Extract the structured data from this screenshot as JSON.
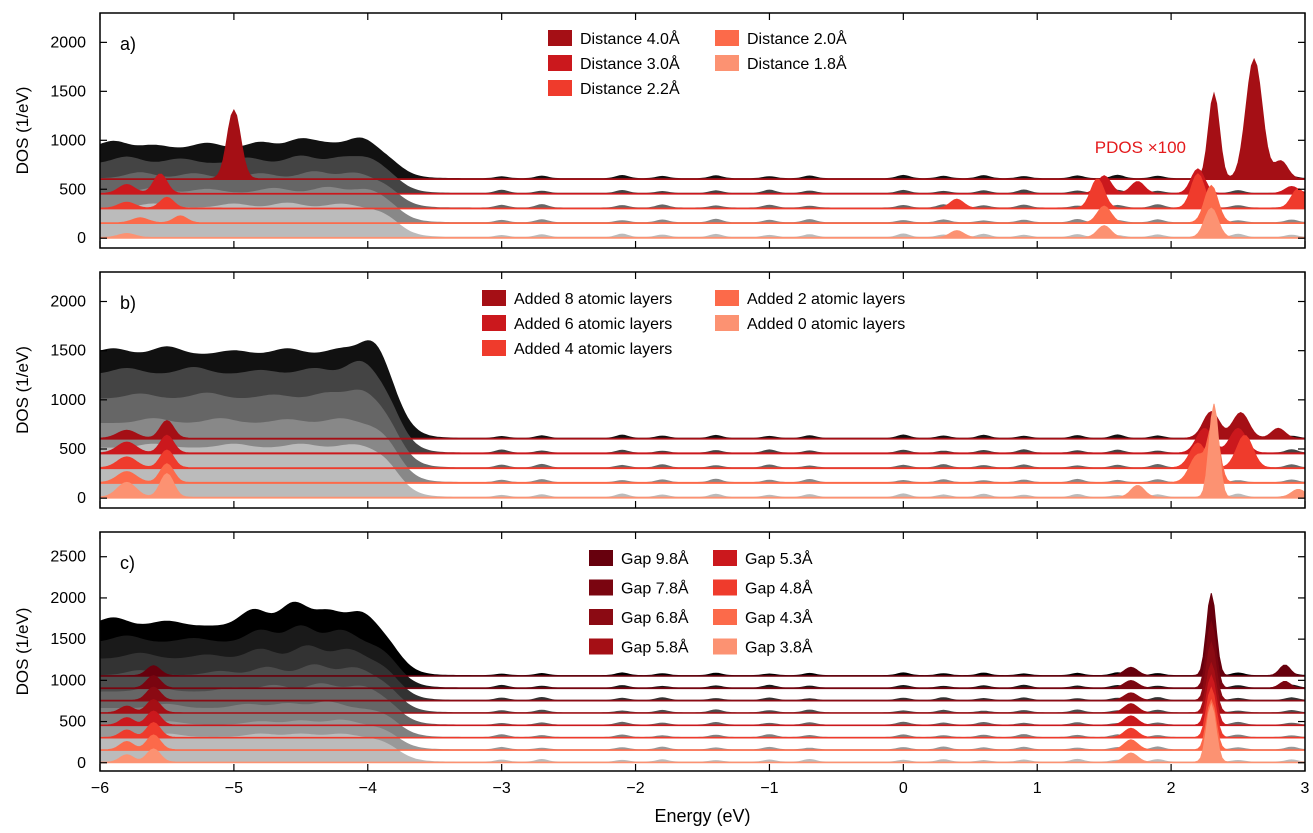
{
  "chart_data": [
    {
      "type": "area",
      "panel_label": "a)",
      "xlabel": "",
      "ylabel": "DOS (1/eV)",
      "xlim": [
        -6,
        3
      ],
      "ylim": [
        -100,
        2300
      ],
      "yticks": [
        0,
        500,
        1000,
        1500,
        2000
      ],
      "annotation": "PDOS ×100",
      "legend": [
        "Distance 4.0Å",
        "Distance 3.0Å",
        "Distance 2.2Å",
        "Distance 2.0Å",
        "Distance 1.8Å"
      ],
      "series": [
        {
          "name": "Distance 4.0Å",
          "offset": 600,
          "color": "#a50f15",
          "gray": "#111111",
          "vb_level": 300,
          "vb_bumps": [
            [
              -5.9,
              80
            ],
            [
              -5.6,
              40
            ],
            [
              -5.2,
              60
            ],
            [
              -4.8,
              70
            ],
            [
              -4.5,
              100
            ],
            [
              -4.3,
              50
            ],
            [
              -4.05,
              120
            ]
          ],
          "pdos_base": 8,
          "pdos_peaks": [
            [
              -5.0,
              700,
              0.05
            ],
            [
              2.32,
              870,
              0.04
            ],
            [
              2.62,
              1220,
              0.06
            ],
            [
              2.82,
              180,
              0.05
            ]
          ]
        },
        {
          "name": "Distance 3.0Å",
          "offset": 450,
          "color": "#cb181d",
          "gray": "#444444",
          "vb_level": 300,
          "vb_bumps": [
            [
              -5.8,
              70
            ],
            [
              -5.4,
              50
            ],
            [
              -4.9,
              60
            ],
            [
              -4.5,
              80
            ],
            [
              -4.2,
              60
            ],
            [
              -4.0,
              70
            ]
          ],
          "pdos_base": 8,
          "pdos_peaks": [
            [
              -5.8,
              90,
              0.06
            ],
            [
              -5.55,
              200,
              0.05
            ],
            [
              1.5,
              180,
              0.05
            ],
            [
              1.75,
              120,
              0.05
            ],
            [
              2.2,
              250,
              0.05
            ],
            [
              2.9,
              70,
              0.05
            ]
          ]
        },
        {
          "name": "Distance 2.2Å",
          "offset": 300,
          "color": "#ef3b2c",
          "gray": "#666666",
          "vb_level": 300,
          "vb_bumps": [
            [
              -5.7,
              60
            ],
            [
              -5.3,
              50
            ],
            [
              -4.8,
              50
            ],
            [
              -4.4,
              70
            ],
            [
              -4.1,
              60
            ]
          ],
          "pdos_base": 8,
          "pdos_peaks": [
            [
              -5.8,
              60,
              0.06
            ],
            [
              -5.5,
              110,
              0.05
            ],
            [
              0.4,
              90,
              0.05
            ],
            [
              1.45,
              300,
              0.05
            ],
            [
              2.2,
              350,
              0.05
            ],
            [
              2.95,
              200,
              0.05
            ]
          ]
        },
        {
          "name": "Distance 2.0Å",
          "offset": 150,
          "color": "#fc6a4a",
          "gray": "#888888",
          "vb_level": 300,
          "vb_bumps": [
            [
              -5.6,
              50
            ],
            [
              -5.2,
              40
            ],
            [
              -4.7,
              50
            ],
            [
              -4.3,
              60
            ],
            [
              -4.0,
              50
            ]
          ],
          "pdos_base": 8,
          "pdos_peaks": [
            [
              -5.7,
              50,
              0.06
            ],
            [
              -5.4,
              70,
              0.05
            ],
            [
              1.5,
              170,
              0.05
            ],
            [
              2.3,
              380,
              0.05
            ]
          ]
        },
        {
          "name": "Distance 1.8Å",
          "offset": 0,
          "color": "#fc9272",
          "gray": "#bbbbbb",
          "vb_level": 300,
          "vb_bumps": [
            [
              -5.6,
              40
            ],
            [
              -5.0,
              40
            ],
            [
              -4.6,
              50
            ],
            [
              -4.2,
              40
            ]
          ],
          "pdos_base": 8,
          "pdos_peaks": [
            [
              -5.8,
              40,
              0.06
            ],
            [
              0.4,
              70,
              0.05
            ],
            [
              1.5,
              120,
              0.05
            ],
            [
              2.3,
              300,
              0.05
            ]
          ]
        }
      ]
    },
    {
      "type": "area",
      "panel_label": "b)",
      "xlabel": "",
      "ylabel": "DOS (1/eV)",
      "xlim": [
        -6,
        3
      ],
      "ylim": [
        -100,
        2300
      ],
      "yticks": [
        0,
        500,
        1000,
        1500,
        2000
      ],
      "legend": [
        "Added 8 atomic layers",
        "Added 6 atomic layers",
        "Added 4 atomic layers",
        "Added 2 atomic layers",
        "Added 0 atomic layers"
      ],
      "series": [
        {
          "name": "Added 8 atomic layers",
          "offset": 600,
          "color": "#a50f15",
          "gray": "#111111",
          "vb_level": 850,
          "vb_bumps": [
            [
              -5.9,
              60
            ],
            [
              -5.5,
              80
            ],
            [
              -5.0,
              40
            ],
            [
              -4.6,
              60
            ],
            [
              -4.2,
              60
            ],
            [
              -3.95,
              200
            ]
          ],
          "pdos_base": 10,
          "pdos_peaks": [
            [
              -5.8,
              80,
              0.07
            ],
            [
              -5.5,
              180,
              0.05
            ],
            [
              2.3,
              270,
              0.06
            ],
            [
              2.52,
              260,
              0.06
            ],
            [
              2.8,
              100,
              0.05
            ]
          ]
        },
        {
          "name": "Added 6 atomic layers",
          "offset": 450,
          "color": "#cb181d",
          "gray": "#444444",
          "vb_level": 800,
          "vb_bumps": [
            [
              -5.8,
              60
            ],
            [
              -5.3,
              70
            ],
            [
              -4.8,
              40
            ],
            [
              -4.4,
              60
            ],
            [
              -4.05,
              150
            ]
          ],
          "pdos_base": 10,
          "pdos_peaks": [
            [
              -5.8,
              110,
              0.07
            ],
            [
              -5.5,
              180,
              0.05
            ],
            [
              2.25,
              250,
              0.06
            ],
            [
              2.5,
              250,
              0.06
            ]
          ]
        },
        {
          "name": "Added 4 atomic layers",
          "offset": 300,
          "color": "#ef3b2c",
          "gray": "#666666",
          "vb_level": 700,
          "vb_bumps": [
            [
              -5.7,
              50
            ],
            [
              -5.2,
              60
            ],
            [
              -4.7,
              40
            ],
            [
              -4.3,
              60
            ],
            [
              -4.05,
              100
            ]
          ],
          "pdos_base": 10,
          "pdos_peaks": [
            [
              -5.8,
              110,
              0.07
            ],
            [
              -5.5,
              180,
              0.05
            ],
            [
              2.2,
              250,
              0.06
            ],
            [
              2.55,
              330,
              0.06
            ]
          ]
        },
        {
          "name": "Added 2 atomic layers",
          "offset": 150,
          "color": "#fc6a4a",
          "gray": "#888888",
          "vb_level": 600,
          "vb_bumps": [
            [
              -5.6,
              50
            ],
            [
              -5.1,
              50
            ],
            [
              -4.6,
              40
            ],
            [
              -4.2,
              50
            ]
          ],
          "pdos_base": 10,
          "pdos_peaks": [
            [
              -5.8,
              110,
              0.07
            ],
            [
              -5.5,
              190,
              0.05
            ],
            [
              2.2,
              280,
              0.06
            ],
            [
              2.32,
              600,
              0.04
            ]
          ]
        },
        {
          "name": "Added 0 atomic layers",
          "offset": 0,
          "color": "#fc9272",
          "gray": "#bbbbbb",
          "vb_level": 500,
          "vb_bumps": [
            [
              -5.6,
              40
            ],
            [
              -5.0,
              40
            ],
            [
              -4.5,
              40
            ],
            [
              -4.1,
              40
            ]
          ],
          "pdos_base": 10,
          "pdos_peaks": [
            [
              -5.8,
              150,
              0.07
            ],
            [
              -5.5,
              240,
              0.05
            ],
            [
              1.75,
              120,
              0.05
            ],
            [
              2.32,
              950,
              0.035
            ],
            [
              2.95,
              80,
              0.05
            ]
          ]
        }
      ]
    },
    {
      "type": "area",
      "panel_label": "c)",
      "xlabel": "Energy (eV)",
      "ylabel": "DOS (1/eV)",
      "xlim": [
        -6,
        3
      ],
      "ylim": [
        -100,
        2800
      ],
      "yticks": [
        0,
        500,
        1000,
        1500,
        2000,
        2500
      ],
      "xticks": [
        -6,
        -5,
        -4,
        -3,
        -2,
        -1,
        0,
        1,
        2,
        3
      ],
      "legend": [
        "Gap 9.8Å",
        "Gap 7.8Å",
        "Gap 6.8Å",
        "Gap 5.8Å",
        "Gap 5.3Å",
        "Gap 4.8Å",
        "Gap 4.3Å",
        "Gap 3.8Å"
      ],
      "series": [
        {
          "name": "Gap 9.8Å",
          "offset": 1050,
          "color": "#67000d",
          "gray": "#000000",
          "vb_level": 600,
          "vb_bumps": [
            [
              -5.9,
              100
            ],
            [
              -5.5,
              60
            ],
            [
              -4.85,
              200
            ],
            [
              -4.55,
              280
            ],
            [
              -4.3,
              180
            ],
            [
              -4.05,
              180
            ]
          ],
          "pdos_base": 8,
          "pdos_peaks": [
            [
              -5.6,
              120,
              0.05
            ],
            [
              1.7,
              100,
              0.05
            ],
            [
              2.3,
              1000,
              0.035
            ],
            [
              2.85,
              130,
              0.04
            ]
          ]
        },
        {
          "name": "Gap 7.8Å",
          "offset": 900,
          "color": "#7a0510",
          "gray": "#1a1a1a",
          "vb_level": 550,
          "vb_bumps": [
            [
              -5.8,
              80
            ],
            [
              -5.3,
              50
            ],
            [
              -4.8,
              150
            ],
            [
              -4.5,
              200
            ],
            [
              -4.2,
              150
            ]
          ],
          "pdos_base": 8,
          "pdos_peaks": [
            [
              -5.6,
              150,
              0.05
            ],
            [
              1.7,
              90,
              0.05
            ],
            [
              2.3,
              800,
              0.035
            ],
            [
              2.85,
              80,
              0.04
            ]
          ]
        },
        {
          "name": "Gap 6.8Å",
          "offset": 750,
          "color": "#8b0a13",
          "gray": "#333333",
          "vb_level": 500,
          "vb_bumps": [
            [
              -5.7,
              70
            ],
            [
              -5.2,
              50
            ],
            [
              -4.8,
              120
            ],
            [
              -4.45,
              160
            ],
            [
              -4.15,
              120
            ]
          ],
          "pdos_base": 8,
          "pdos_peaks": [
            [
              -5.6,
              160,
              0.05
            ],
            [
              1.7,
              90,
              0.05
            ],
            [
              2.3,
              700,
              0.035
            ]
          ]
        },
        {
          "name": "Gap 5.8Å",
          "offset": 600,
          "color": "#a50f15",
          "gray": "#4d4d4d",
          "vb_level": 450,
          "vb_bumps": [
            [
              -5.7,
              60
            ],
            [
              -5.1,
              50
            ],
            [
              -4.75,
              100
            ],
            [
              -4.4,
              130
            ],
            [
              -4.1,
              100
            ]
          ],
          "pdos_base": 8,
          "pdos_peaks": [
            [
              -5.6,
              160,
              0.05
            ],
            [
              -5.8,
              80,
              0.05
            ],
            [
              1.7,
              110,
              0.05
            ],
            [
              2.3,
              600,
              0.035
            ]
          ]
        },
        {
          "name": "Gap 5.3Å",
          "offset": 450,
          "color": "#cb181d",
          "gray": "#666666",
          "vb_level": 400,
          "vb_bumps": [
            [
              -5.6,
              60
            ],
            [
              -5.0,
              50
            ],
            [
              -4.7,
              80
            ],
            [
              -4.35,
              100
            ],
            [
              -4.05,
              80
            ]
          ],
          "pdos_base": 8,
          "pdos_peaks": [
            [
              -5.6,
              170,
              0.05
            ],
            [
              -5.8,
              90,
              0.05
            ],
            [
              1.7,
              110,
              0.05
            ],
            [
              2.3,
              600,
              0.035
            ]
          ]
        },
        {
          "name": "Gap 4.8Å",
          "offset": 300,
          "color": "#ef3b2c",
          "gray": "#808080",
          "vb_level": 350,
          "vb_bumps": [
            [
              -5.5,
              50
            ],
            [
              -4.9,
              50
            ],
            [
              -4.6,
              60
            ],
            [
              -4.3,
              80
            ]
          ],
          "pdos_base": 8,
          "pdos_peaks": [
            [
              -5.6,
              180,
              0.05
            ],
            [
              -5.8,
              90,
              0.05
            ],
            [
              1.7,
              110,
              0.05
            ],
            [
              2.3,
              600,
              0.035
            ]
          ]
        },
        {
          "name": "Gap 4.3Å",
          "offset": 150,
          "color": "#fc6a4a",
          "gray": "#999999",
          "vb_level": 300,
          "vb_bumps": [
            [
              -5.5,
              40
            ],
            [
              -4.8,
              40
            ],
            [
              -4.5,
              50
            ],
            [
              -4.2,
              60
            ]
          ],
          "pdos_base": 8,
          "pdos_peaks": [
            [
              -5.6,
              180,
              0.05
            ],
            [
              -5.8,
              100,
              0.05
            ],
            [
              1.7,
              120,
              0.05
            ],
            [
              2.3,
              600,
              0.035
            ]
          ]
        },
        {
          "name": "Gap 3.8Å",
          "offset": 0,
          "color": "#fc9272",
          "gray": "#bbbbbb",
          "vb_level": 300,
          "vb_bumps": [
            [
              -5.5,
              40
            ],
            [
              -4.8,
              40
            ],
            [
              -4.5,
              40
            ],
            [
              -4.2,
              40
            ]
          ],
          "pdos_base": 8,
          "pdos_peaks": [
            [
              -5.6,
              160,
              0.05
            ],
            [
              -5.8,
              90,
              0.05
            ],
            [
              1.7,
              110,
              0.05
            ],
            [
              2.3,
              700,
              0.035
            ]
          ]
        }
      ]
    }
  ]
}
